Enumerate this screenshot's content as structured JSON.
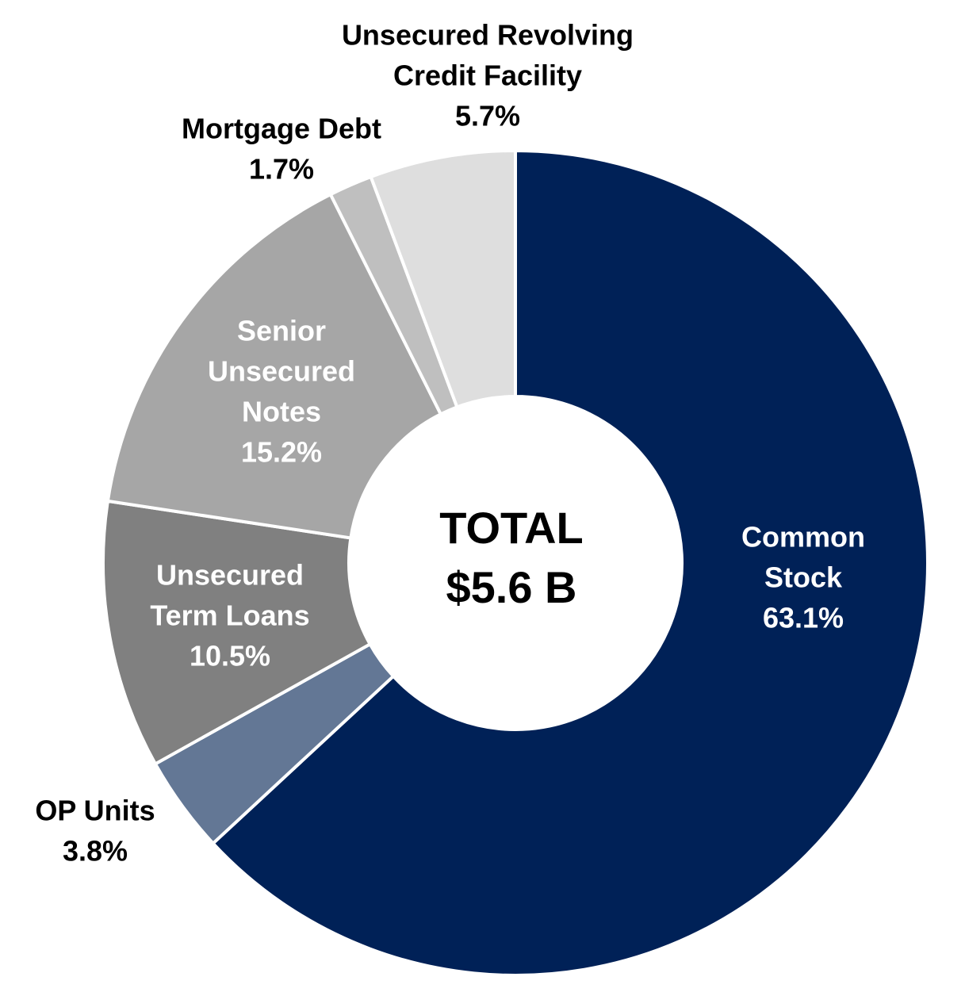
{
  "chart_data": {
    "type": "donut",
    "categories": [
      [
        "Common",
        "Stock"
      ],
      [
        "OP Units"
      ],
      [
        "Unsecured",
        "Term Loans"
      ],
      [
        "Senior",
        "Unsecured",
        "Notes"
      ],
      [
        "Mortgage Debt"
      ],
      [
        "Unsecured Revolving",
        "Credit Facility"
      ]
    ],
    "values": [
      63.1,
      3.8,
      10.5,
      15.2,
      1.7,
      5.7
    ],
    "value_labels": [
      "63.1%",
      "3.8%",
      "10.5%",
      "15.2%",
      "1.7%",
      "5.7%"
    ],
    "colors": [
      "#002157",
      "#637795",
      "#808080",
      "#a6a6a6",
      "#bfbfbf",
      "#dedede"
    ],
    "annotations": [
      "TOTAL",
      "$5.6 B"
    ]
  }
}
